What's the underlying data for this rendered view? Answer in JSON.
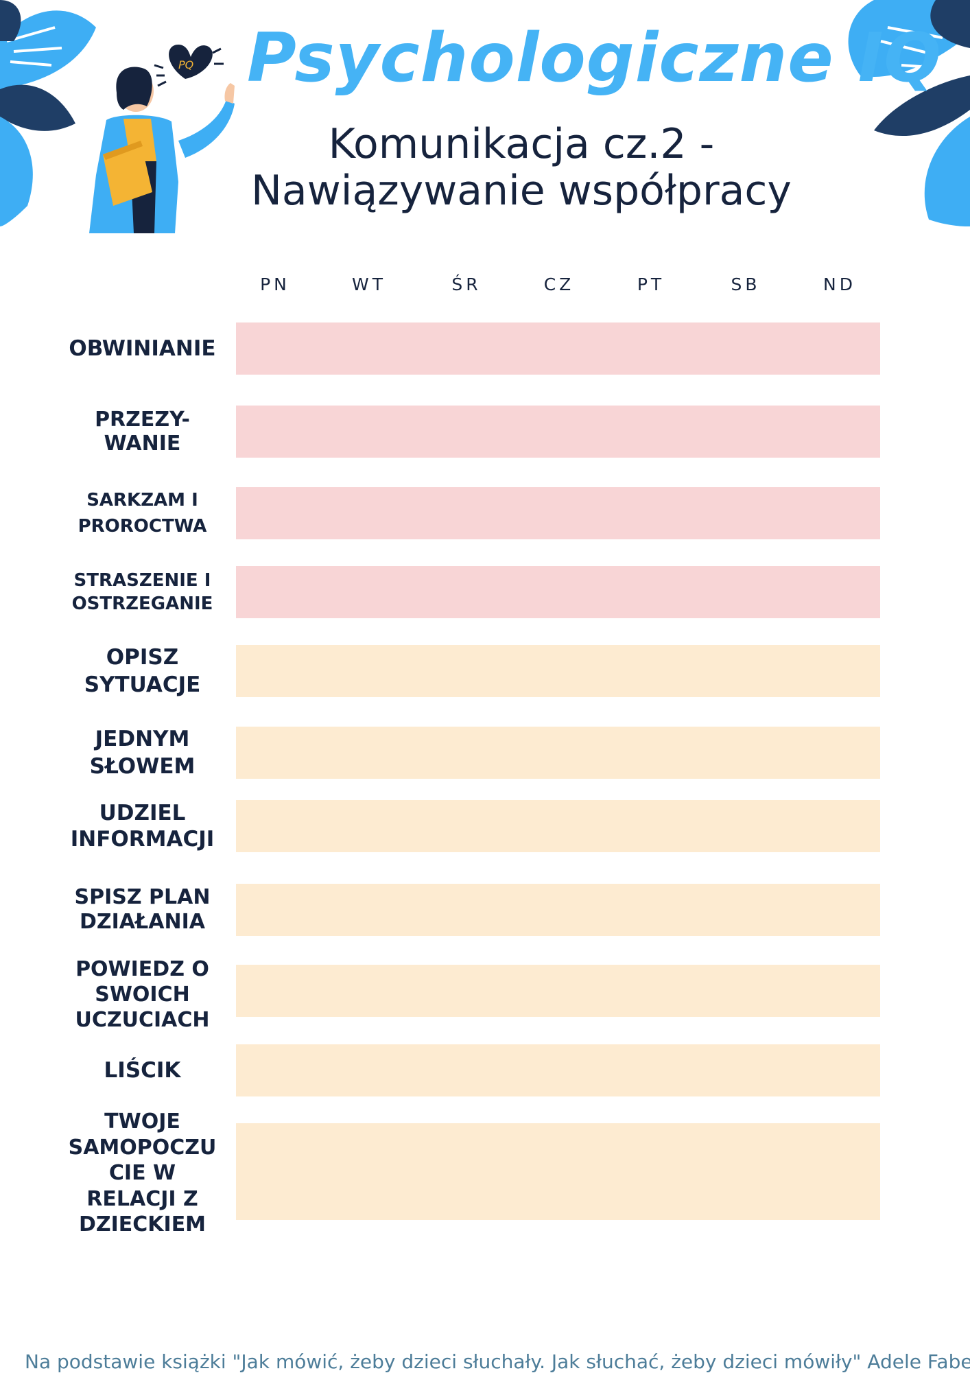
{
  "header": {
    "brand": "Psychologiczne IQ",
    "subtitle_line1": "Komunikacja cz.2 -",
    "subtitle_line2": "Nawiązywanie współpracy",
    "logo_badge": "PQ"
  },
  "colors": {
    "brand": "#45b3f5",
    "navy": "#16233d",
    "negative_row": "#f8d5d6",
    "positive_row": "#fdebd1",
    "footer_text": "#4d7d99"
  },
  "days": [
    "PN",
    "WT",
    "ŚR",
    "CZ",
    "PT",
    "SB",
    "ND"
  ],
  "rows": [
    {
      "label": "OBWINIANIE",
      "kind": "negative"
    },
    {
      "label": "PRZEZY-\nWANIE",
      "kind": "negative"
    },
    {
      "label": "SARKZAM I\nPROROCTWA",
      "kind": "negative"
    },
    {
      "label": "STRASZENIE I\nOSTRZEGANIE",
      "kind": "negative"
    },
    {
      "label": "OPISZ\nSYTUACJE",
      "kind": "positive"
    },
    {
      "label": "JEDNYM\nSŁOWEM",
      "kind": "positive"
    },
    {
      "label": "UDZIEL\nINFORMACJI",
      "kind": "positive"
    },
    {
      "label": "SPISZ PLAN\nDZIAŁANIA",
      "kind": "positive"
    },
    {
      "label": "POWIEDZ O\nSWOICH\nUCZUCIACH",
      "kind": "positive"
    },
    {
      "label": "LIŚCIK",
      "kind": "positive"
    },
    {
      "label": "TWOJE\nSAMOPOCZU\nCIE W\nRELACJI Z\nDZIECKIEM",
      "kind": "positive"
    }
  ],
  "footer": "Na podstawie książki \"Jak mówić, żeby dzieci słuchały. Jak słuchać, żeby dzieci mówiły\" Adele Faber, Elaine"
}
